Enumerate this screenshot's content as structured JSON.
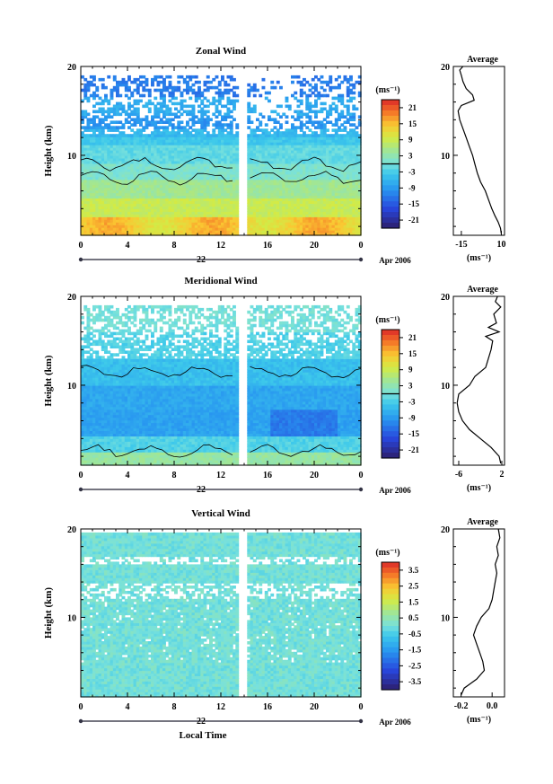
{
  "chart_data": [
    {
      "type": "heatmap",
      "title": "Zonal Wind",
      "ylabel": "Height (km)",
      "xlabel": "",
      "xticks": [
        "0",
        "4",
        "8",
        "12",
        "16",
        "20",
        "0"
      ],
      "yticks": [
        "10",
        "20"
      ],
      "ylim": [
        1,
        20
      ],
      "xlim": [
        0,
        24
      ],
      "date_day": "22",
      "date_month": "Apr 2006",
      "colorbar": {
        "unit": "(ms⁻¹)",
        "ticks": [
          "21",
          "15",
          "9",
          "3",
          "-3",
          "-9",
          "-15",
          "-21"
        ],
        "range": [
          -24,
          24
        ]
      },
      "data_gap": [
        13.6,
        14.2
      ],
      "profile": {
        "title": "Average",
        "xticks": [
          "-15",
          "10"
        ],
        "xlim": [
          -20,
          12
        ],
        "unit": "(ms⁻¹)",
        "points": [
          [
            10,
            1.2
          ],
          [
            9.5,
            1.8
          ],
          [
            8,
            2.5
          ],
          [
            6,
            3.2
          ],
          [
            4,
            4
          ],
          [
            2,
            5
          ],
          [
            0,
            6
          ],
          [
            -3,
            7
          ],
          [
            -5,
            8
          ],
          [
            -6.5,
            9
          ],
          [
            -8,
            10
          ],
          [
            -10,
            11
          ],
          [
            -12,
            12
          ],
          [
            -14,
            13
          ],
          [
            -16,
            14
          ],
          [
            -17,
            15
          ],
          [
            -15,
            15.6
          ],
          [
            -7,
            16.2
          ],
          [
            -8,
            16.8
          ],
          [
            -12,
            17.5
          ],
          [
            -14,
            18.3
          ],
          [
            -15,
            19
          ],
          [
            -16,
            19.6
          ],
          [
            -14,
            20
          ]
        ]
      }
    },
    {
      "type": "heatmap",
      "title": "Meridional Wind",
      "ylabel": "Height (km)",
      "xlabel": "",
      "xticks": [
        "0",
        "4",
        "8",
        "12",
        "16",
        "20",
        "0"
      ],
      "yticks": [
        "10",
        "20"
      ],
      "ylim": [
        1,
        20
      ],
      "xlim": [
        0,
        24
      ],
      "date_day": "22",
      "date_month": "Apr 2006",
      "colorbar": {
        "unit": "(ms⁻¹)",
        "ticks": [
          "21",
          "15",
          "9",
          "3",
          "-3",
          "-9",
          "-15",
          "-21"
        ],
        "range": [
          -24,
          24
        ]
      },
      "data_gap": [
        13.6,
        14.2
      ],
      "profile": {
        "title": "Average",
        "xticks": [
          "-6",
          "2"
        ],
        "xlim": [
          -7,
          2.5
        ],
        "unit": "(ms⁻¹)",
        "points": [
          [
            1.8,
            1.2
          ],
          [
            1.5,
            2
          ],
          [
            0,
            3
          ],
          [
            -2,
            4
          ],
          [
            -4,
            5
          ],
          [
            -5.3,
            6
          ],
          [
            -6,
            7
          ],
          [
            -6.3,
            8
          ],
          [
            -6,
            9
          ],
          [
            -4,
            10
          ],
          [
            -3,
            11
          ],
          [
            -1,
            12
          ],
          [
            -0.5,
            13
          ],
          [
            0,
            14
          ],
          [
            0.3,
            15
          ],
          [
            -1,
            15.5
          ],
          [
            1.5,
            16
          ],
          [
            -0.5,
            16.5
          ],
          [
            1,
            17
          ],
          [
            0.5,
            18
          ],
          [
            1.8,
            18.8
          ],
          [
            0.8,
            19.4
          ],
          [
            1.2,
            20
          ]
        ]
      }
    },
    {
      "type": "heatmap",
      "title": "Vertical Wind",
      "ylabel": "Height (km)",
      "xlabel": "Local Time",
      "xticks": [
        "0",
        "4",
        "8",
        "12",
        "16",
        "20",
        "0"
      ],
      "yticks": [
        "10",
        "20"
      ],
      "ylim": [
        1,
        20
      ],
      "xlim": [
        0,
        24
      ],
      "date_day": "22",
      "date_month": "Apr 2006",
      "colorbar": {
        "unit": "(ms⁻¹)",
        "ticks": [
          "3.5",
          "2.5",
          "1.5",
          "0.5",
          "-0.5",
          "-1.5",
          "-2.5",
          "-3.5"
        ],
        "range": [
          -4,
          4
        ]
      },
      "data_gap": [
        13.6,
        14.2
      ],
      "profile": {
        "title": "Average",
        "xticks": [
          "-0.2",
          "0.0"
        ],
        "xlim": [
          -0.25,
          0.08
        ],
        "unit": "(ms⁻¹)",
        "points": [
          [
            -0.2,
            1.2
          ],
          [
            -0.18,
            2
          ],
          [
            -0.1,
            3
          ],
          [
            -0.05,
            4
          ],
          [
            -0.06,
            5
          ],
          [
            -0.08,
            6
          ],
          [
            -0.1,
            7
          ],
          [
            -0.12,
            8
          ],
          [
            -0.1,
            9
          ],
          [
            -0.07,
            10
          ],
          [
            -0.02,
            11
          ],
          [
            0,
            12
          ],
          [
            0.01,
            13
          ],
          [
            0.02,
            14
          ],
          [
            0.03,
            15
          ],
          [
            0.02,
            16
          ],
          [
            0.04,
            17
          ],
          [
            0.03,
            18
          ],
          [
            0.05,
            19
          ],
          [
            0.04,
            20
          ]
        ]
      }
    }
  ]
}
